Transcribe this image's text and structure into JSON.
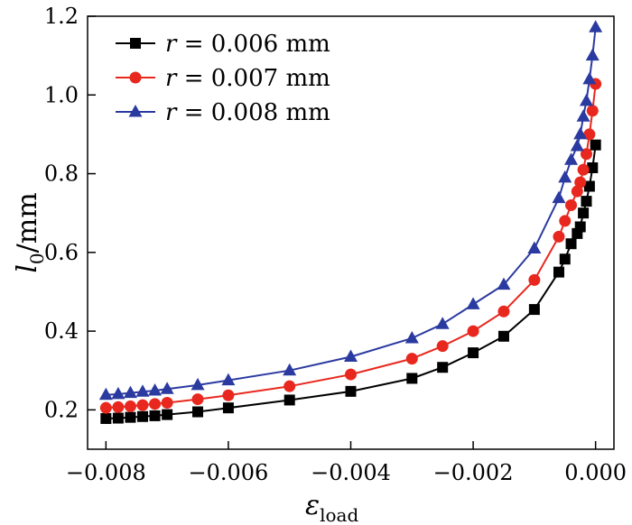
{
  "chart_data": {
    "type": "line",
    "xlabel": "ε",
    "xlabel_sub": "load",
    "ylabel": "l",
    "ylabel_sub": "0",
    "ylabel_unit": "/mm",
    "xlim": [
      -0.0083,
      0.0003
    ],
    "ylim": [
      0.1,
      1.2
    ],
    "xticks": [
      -0.008,
      -0.006,
      -0.004,
      -0.002,
      0.0
    ],
    "xtick_labels": [
      "−0.008",
      "−0.006",
      "−0.004",
      "−0.002",
      "0.000"
    ],
    "yticks": [
      0.2,
      0.4,
      0.6,
      0.8,
      1.0,
      1.2
    ],
    "ytick_labels": [
      "0.2",
      "0.4",
      "0.6",
      "0.8",
      "1.0",
      "1.2"
    ],
    "legend_position": "top-left",
    "series": [
      {
        "name": "r = 0.006 mm",
        "name_var": "r",
        "name_rest": " = 0.006 mm",
        "color": "#000000",
        "marker": "square",
        "points": [
          [
            -0.008,
            0.178
          ],
          [
            -0.0078,
            0.179
          ],
          [
            -0.0076,
            0.181
          ],
          [
            -0.0074,
            0.183
          ],
          [
            -0.0072,
            0.185
          ],
          [
            -0.007,
            0.188
          ],
          [
            -0.0065,
            0.195
          ],
          [
            -0.006,
            0.205
          ],
          [
            -0.005,
            0.225
          ],
          [
            -0.004,
            0.247
          ],
          [
            -0.003,
            0.28
          ],
          [
            -0.0025,
            0.308
          ],
          [
            -0.002,
            0.345
          ],
          [
            -0.0015,
            0.387
          ],
          [
            -0.001,
            0.455
          ],
          [
            -0.0006,
            0.55
          ],
          [
            -0.0005,
            0.583
          ],
          [
            -0.0004,
            0.622
          ],
          [
            -0.0003,
            0.648
          ],
          [
            -0.00025,
            0.665
          ],
          [
            -0.0002,
            0.7
          ],
          [
            -0.00015,
            0.73
          ],
          [
            -0.0001,
            0.768
          ],
          [
            -5e-05,
            0.815
          ],
          [
            0.0,
            0.873
          ]
        ]
      },
      {
        "name": "r = 0.007 mm",
        "name_var": "r",
        "name_rest": " = 0.007 mm",
        "color": "#e8281e",
        "marker": "circle",
        "points": [
          [
            -0.008,
            0.205
          ],
          [
            -0.0078,
            0.207
          ],
          [
            -0.0076,
            0.209
          ],
          [
            -0.0074,
            0.212
          ],
          [
            -0.0072,
            0.215
          ],
          [
            -0.007,
            0.218
          ],
          [
            -0.0065,
            0.227
          ],
          [
            -0.006,
            0.237
          ],
          [
            -0.005,
            0.26
          ],
          [
            -0.004,
            0.29
          ],
          [
            -0.003,
            0.33
          ],
          [
            -0.0025,
            0.362
          ],
          [
            -0.002,
            0.4
          ],
          [
            -0.0015,
            0.45
          ],
          [
            -0.001,
            0.53
          ],
          [
            -0.0006,
            0.64
          ],
          [
            -0.0005,
            0.68
          ],
          [
            -0.0004,
            0.72
          ],
          [
            -0.0003,
            0.755
          ],
          [
            -0.00025,
            0.778
          ],
          [
            -0.0002,
            0.81
          ],
          [
            -0.00015,
            0.85
          ],
          [
            -0.0001,
            0.9
          ],
          [
            -5e-05,
            0.96
          ],
          [
            0.0,
            1.028
          ]
        ]
      },
      {
        "name": "r = 0.008 mm",
        "name_var": "r",
        "name_rest": " = 0.008 mm",
        "color": "#2b3aa0",
        "marker": "triangle",
        "points": [
          [
            -0.008,
            0.238
          ],
          [
            -0.0078,
            0.24
          ],
          [
            -0.0076,
            0.243
          ],
          [
            -0.0074,
            0.246
          ],
          [
            -0.0072,
            0.249
          ],
          [
            -0.007,
            0.253
          ],
          [
            -0.0065,
            0.263
          ],
          [
            -0.006,
            0.275
          ],
          [
            -0.005,
            0.3
          ],
          [
            -0.004,
            0.335
          ],
          [
            -0.003,
            0.382
          ],
          [
            -0.0025,
            0.418
          ],
          [
            -0.002,
            0.468
          ],
          [
            -0.0015,
            0.518
          ],
          [
            -0.001,
            0.61
          ],
          [
            -0.0006,
            0.738
          ],
          [
            -0.0005,
            0.79
          ],
          [
            -0.0004,
            0.835
          ],
          [
            -0.0003,
            0.87
          ],
          [
            -0.00025,
            0.9
          ],
          [
            -0.0002,
            0.945
          ],
          [
            -0.00015,
            0.985
          ],
          [
            -0.0001,
            1.04
          ],
          [
            -5e-05,
            1.1
          ],
          [
            0.0,
            1.172
          ]
        ]
      }
    ]
  }
}
